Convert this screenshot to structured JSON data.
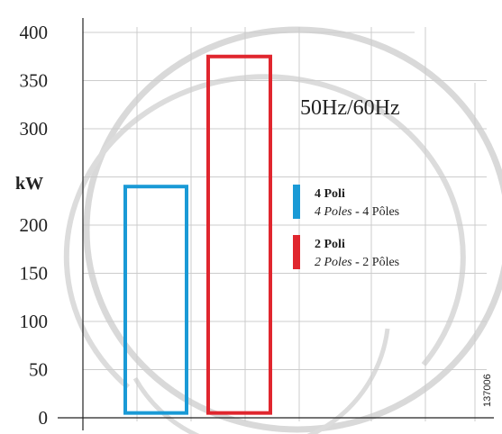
{
  "chart_data": {
    "type": "bar",
    "title": "50Hz/60Hz",
    "ylabel": "kW",
    "ylim": [
      0,
      400
    ],
    "yticks": [
      0,
      50,
      100,
      150,
      200,
      250,
      300,
      350,
      400
    ],
    "y_tick_labels_shown": [
      "0",
      "50",
      "100",
      "150",
      "200",
      "",
      "300",
      "350",
      "400"
    ],
    "grid": true,
    "series": [
      {
        "name_main": "4 Poli",
        "name_sub_it": "4 Poles",
        "name_sub_fr": "4 Pôles",
        "range": [
          5,
          240
        ],
        "color": "#1a9ad6"
      },
      {
        "name_main": "2 Poli",
        "name_sub_it": "2 Poles",
        "name_sub_fr": "2 Pôles",
        "range": [
          5,
          375
        ],
        "color": "#e0262e"
      }
    ],
    "legend_separator": "-",
    "code": "137006"
  }
}
